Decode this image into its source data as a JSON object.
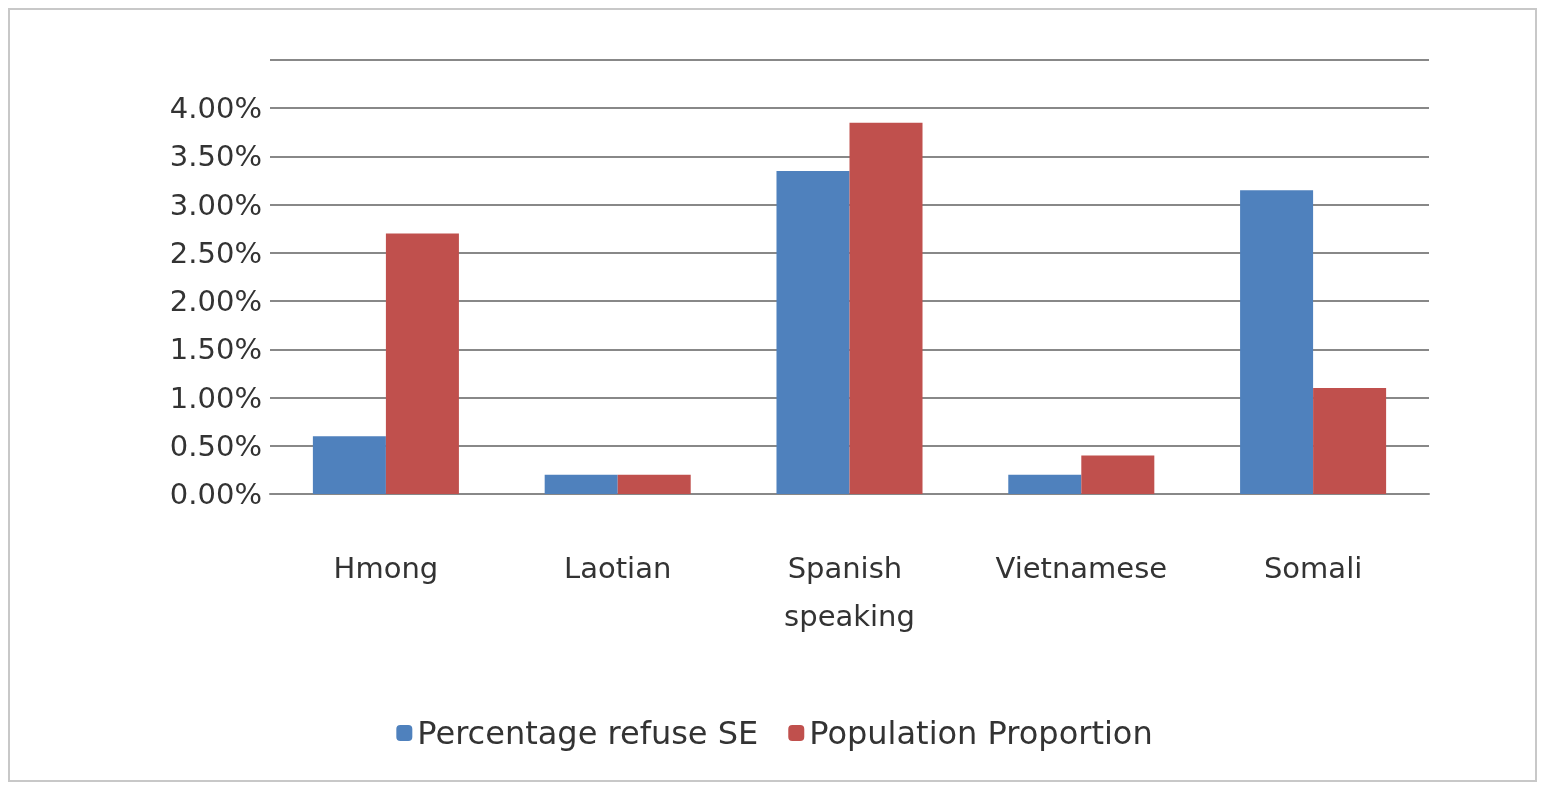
{
  "chart_data": {
    "type": "bar",
    "categories": [
      "Hmong",
      "Laotian",
      "Spanish speaking",
      "Vietnamese",
      "Somali"
    ],
    "series": [
      {
        "name": "Percentage refuse SE",
        "color": "#4f81bd",
        "values": [
          0.6,
          0.2,
          3.35,
          0.2,
          3.15
        ]
      },
      {
        "name": "Population Proportion",
        "color": "#c0504d",
        "values": [
          2.7,
          0.2,
          3.85,
          0.4,
          1.1
        ]
      }
    ],
    "ylim": [
      0,
      4.5
    ],
    "yticks": [
      {
        "value": 0,
        "label": "0.00%"
      },
      {
        "value": 0.5,
        "label": "0.50%"
      },
      {
        "value": 1,
        "label": "1.00%"
      },
      {
        "value": 1.5,
        "label": "1.50%"
      },
      {
        "value": 2,
        "label": "2.00%"
      },
      {
        "value": 2.5,
        "label": "2.50%"
      },
      {
        "value": 3,
        "label": "3.00%"
      },
      {
        "value": 3.5,
        "label": "3.50%"
      },
      {
        "value": 4,
        "label": "4.00%"
      },
      {
        "value": 4.5,
        "label": null
      }
    ],
    "grid": true,
    "legend": "bottom"
  }
}
